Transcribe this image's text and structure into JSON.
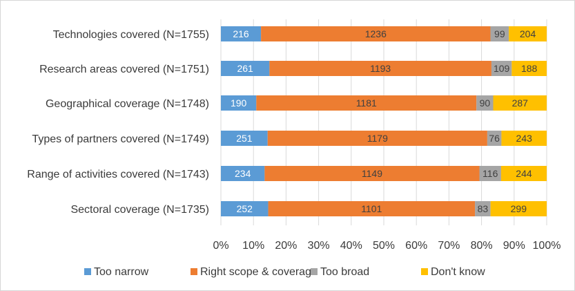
{
  "chart_data": {
    "type": "bar",
    "orientation": "horizontal",
    "stacking": "percent",
    "categories": [
      "Technologies covered (N=1755)",
      "Research areas covered (N=1751)",
      "Geographical coverage (N=1748)",
      "Types of partners covered (N=1749)",
      "Range of activities covered (N=1743)",
      "Sectoral coverage (N=1735)"
    ],
    "series": [
      {
        "name": "Too narrow",
        "color": "#5b9bd5",
        "label_color": "#ffffff",
        "values": [
          216,
          261,
          190,
          251,
          234,
          252
        ]
      },
      {
        "name": "Right scope & coverage",
        "color": "#ed7d31",
        "label_color": "#404040",
        "values": [
          1236,
          1193,
          1181,
          1179,
          1149,
          1101
        ]
      },
      {
        "name": "Too broad",
        "color": "#a5a5a5",
        "label_color": "#404040",
        "values": [
          99,
          109,
          90,
          76,
          116,
          83
        ]
      },
      {
        "name": "Don't know",
        "color": "#ffc000",
        "label_color": "#404040",
        "values": [
          204,
          188,
          287,
          243,
          244,
          299
        ]
      }
    ],
    "x_ticks": [
      "0%",
      "10%",
      "20%",
      "30%",
      "40%",
      "50%",
      "60%",
      "70%",
      "80%",
      "90%",
      "100%"
    ],
    "xlim": [
      0,
      100
    ],
    "grid": true,
    "legend_position": "bottom"
  }
}
